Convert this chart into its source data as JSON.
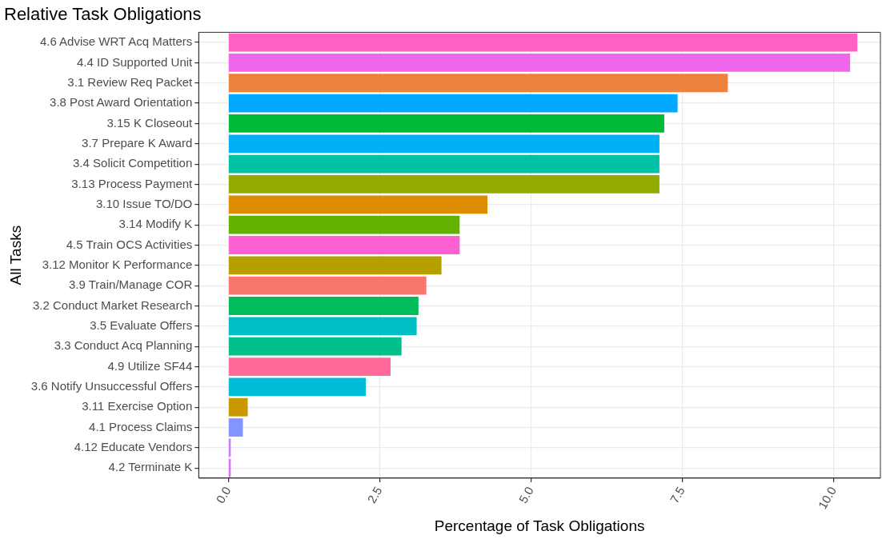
{
  "chart_data": {
    "type": "bar",
    "orientation": "horizontal",
    "title": "Relative Task Obligations",
    "xlabel": "Percentage of Task Obligations",
    "ylabel": "All Tasks",
    "categories": [
      "4.6 Advise WRT Acq Matters",
      "4.4 ID Supported Unit",
      "3.1 Review Req Packet",
      "3.8 Post Award Orientation",
      "3.15 K Closeout",
      "3.7 Prepare K Award",
      "3.4 Solicit Competition",
      "3.13 Process Payment",
      "3.10 Issue TO/DO",
      "3.14 Modify K",
      "4.5 Train OCS Activities",
      "3.12 Monitor K Performance",
      "3.9 Train/Manage COR",
      "3.2 Conduct Market Research",
      "3.5 Evaluate Offers",
      "3.3 Conduct Acq Planning",
      "4.9 Utilize SF44",
      "3.6 Notify Unsuccessful Offers",
      "3.11 Exercise Option",
      "4.1 Process Claims",
      "4.12 Educate Vendors",
      "4.2 Terminate K"
    ],
    "values": [
      10.39,
      10.27,
      8.25,
      7.42,
      7.2,
      7.12,
      7.12,
      7.12,
      4.28,
      3.82,
      3.82,
      3.52,
      3.27,
      3.14,
      3.11,
      2.86,
      2.68,
      2.27,
      0.32,
      0.24,
      0.04,
      0.04
    ],
    "colors": [
      "#ff61c3",
      "#f066ea",
      "#ed813e",
      "#00a9ff",
      "#00ba38",
      "#00b0f6",
      "#00c1a3",
      "#93aa00",
      "#de8c00",
      "#64b200",
      "#fd61d1",
      "#b79f00",
      "#f8766d",
      "#00bd5c",
      "#00bfc4",
      "#00c08b",
      "#ff6a98",
      "#00bcd8",
      "#c99800",
      "#8494ff",
      "#c77cff",
      "#dc71fa"
    ],
    "xlim": [
      -0.49,
      10.77
    ],
    "xticks": [
      {
        "value": 0,
        "label": "0.0"
      },
      {
        "value": 2.5,
        "label": "2.5"
      },
      {
        "value": 5,
        "label": "5.0"
      },
      {
        "value": 7.5,
        "label": "7.5"
      },
      {
        "value": 10,
        "label": "10.0"
      }
    ],
    "grid": true
  }
}
